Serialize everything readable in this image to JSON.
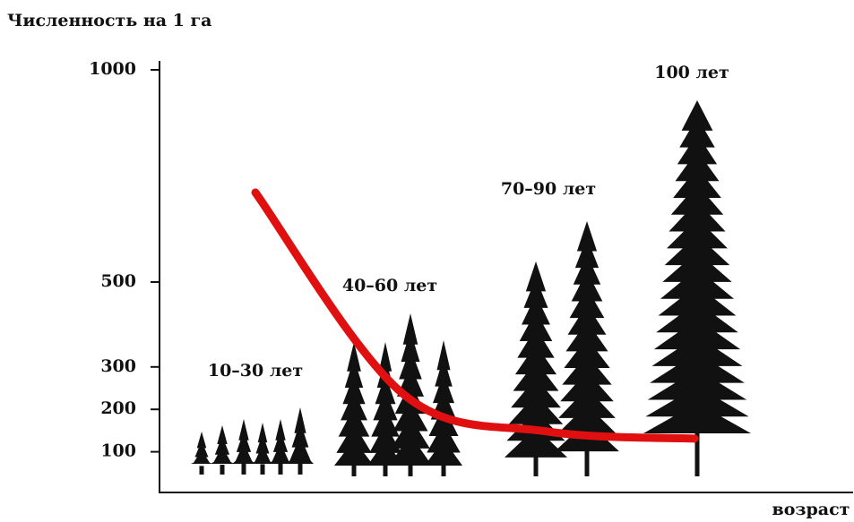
{
  "chart_data": {
    "type": "line",
    "y_label": "Численность на 1 га",
    "x_label": "возраст",
    "categories": [
      "10–30 лет",
      "40–60 лет",
      "70–90 лет",
      "100 лет"
    ],
    "series": [
      {
        "color": "#e01010",
        "values": [
          711,
          236,
          148,
          131
        ]
      }
    ],
    "ylim": [
      0,
      1000
    ],
    "yticks": [
      100,
      200,
      300,
      500,
      1000
    ]
  }
}
